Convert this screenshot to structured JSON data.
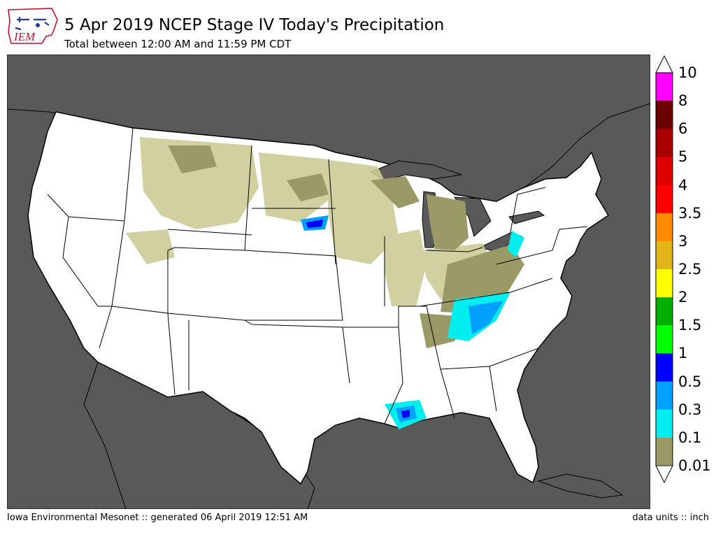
{
  "header": {
    "title": "5 Apr 2019 NCEP Stage IV Today's Precipitation",
    "subtitle": "Total between 12:00 AM and 11:59 PM CDT",
    "logo_text": "IEM"
  },
  "footer": {
    "left": "Iowa Environmental Mesonet :: generated 06 April 2019 12:51 AM",
    "right": "data units :: inch"
  },
  "legend": {
    "labels": [
      "10",
      "8",
      "6",
      "5",
      "4",
      "3.5",
      "3",
      "2.5",
      "2",
      "1.5",
      "1",
      "0.5",
      "0.3",
      "0.1",
      "0.01"
    ],
    "colors": [
      "#ff00ff",
      "#6b0000",
      "#a80000",
      "#e10000",
      "#ff0000",
      "#ff8c00",
      "#e3b417",
      "#ffff00",
      "#00b000",
      "#00ff00",
      "#0000ff",
      "#00a0ff",
      "#00eeee",
      "#9a9a66",
      "#cbcb96"
    ]
  },
  "colors": {
    "ocean": "#595959",
    "land": "#ffffff",
    "border": "#000000"
  },
  "precip_areas": [
    {
      "region": "Montana/Dakotas/Wyoming",
      "level": "0.01"
    },
    {
      "region": "Upper Midwest",
      "level": "0.01"
    },
    {
      "region": "Michigan/Ohio Valley",
      "level": "0.1"
    },
    {
      "region": "Tennessee/Kentucky",
      "level": "0.3"
    },
    {
      "region": "Southern Louisiana",
      "level": "0.5"
    }
  ]
}
